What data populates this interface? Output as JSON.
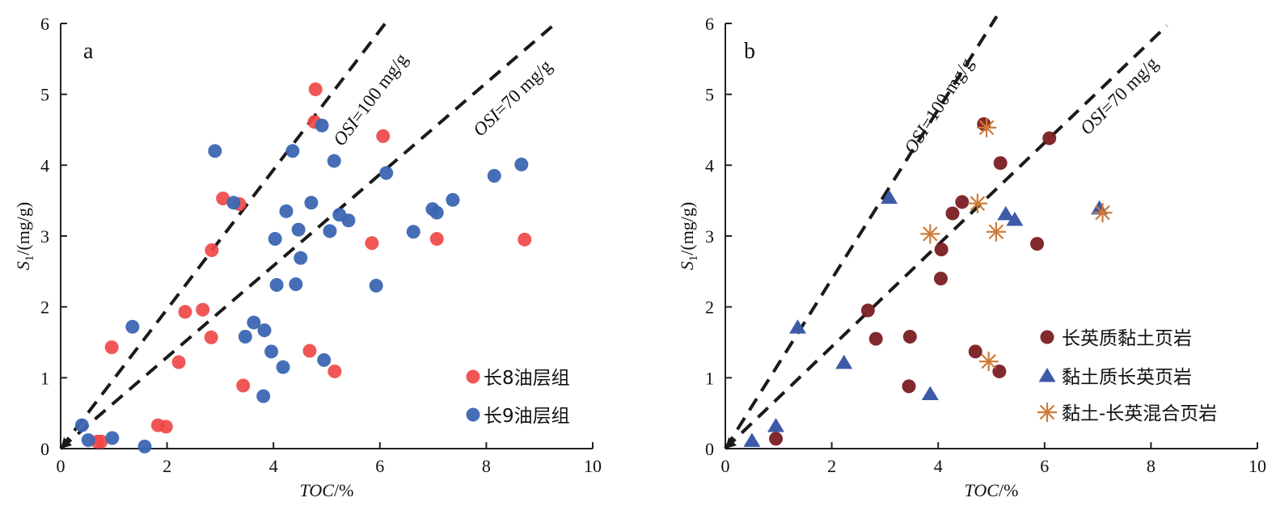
{
  "chart_data": [
    {
      "type": "scatter",
      "panel_label": "a",
      "xlabel_italic": "TOC",
      "xlabel_rest": "/%",
      "ylabel_main": "S",
      "ylabel_sub": "1",
      "ylabel_rest": "/(mg/g)",
      "xlim": [
        0,
        10
      ],
      "ylim": [
        0,
        6
      ],
      "xticks": [
        "0",
        "2",
        "4",
        "6",
        "8",
        "10"
      ],
      "yticks": [
        "0",
        "1",
        "2",
        "3",
        "4",
        "5",
        "6"
      ],
      "legend_position": "bottom-right",
      "reference_lines": [
        {
          "label_italic": "OSI",
          "label_rest": "=100 mg/g",
          "end": [
            6.1,
            6.0
          ]
        },
        {
          "label_italic": "OSI",
          "label_rest": "=70 mg/g",
          "end": [
            9.3,
            6.0
          ]
        }
      ],
      "series": [
        {
          "name": "长8油层组",
          "color": "#f04848",
          "marker": "circle",
          "points": [
            [
              4.79,
              5.07
            ],
            [
              4.77,
              4.61
            ],
            [
              6.06,
              4.41
            ],
            [
              3.05,
              3.53
            ],
            [
              3.36,
              3.45
            ],
            [
              2.84,
              2.8
            ],
            [
              5.85,
              2.9
            ],
            [
              7.07,
              2.96
            ],
            [
              8.72,
              2.95
            ],
            [
              2.34,
              1.93
            ],
            [
              2.67,
              1.96
            ],
            [
              2.83,
              1.57
            ],
            [
              0.96,
              1.43
            ],
            [
              2.22,
              1.22
            ],
            [
              4.68,
              1.38
            ],
            [
              5.15,
              1.09
            ],
            [
              3.43,
              0.89
            ],
            [
              1.83,
              0.33
            ],
            [
              1.98,
              0.31
            ],
            [
              0.69,
              0.1
            ],
            [
              0.76,
              0.1
            ]
          ]
        },
        {
          "name": "长9油层组",
          "color": "#3b66b2",
          "marker": "circle",
          "points": [
            [
              4.91,
              4.56
            ],
            [
              2.9,
              4.2
            ],
            [
              4.36,
              4.2
            ],
            [
              5.14,
              4.06
            ],
            [
              6.12,
              3.89
            ],
            [
              8.15,
              3.85
            ],
            [
              8.66,
              4.01
            ],
            [
              3.25,
              3.47
            ],
            [
              4.71,
              3.47
            ],
            [
              4.24,
              3.35
            ],
            [
              5.24,
              3.3
            ],
            [
              5.41,
              3.22
            ],
            [
              7.37,
              3.51
            ],
            [
              6.99,
              3.38
            ],
            [
              7.07,
              3.33
            ],
            [
              4.47,
              3.09
            ],
            [
              4.03,
              2.96
            ],
            [
              5.06,
              3.07
            ],
            [
              6.63,
              3.06
            ],
            [
              4.51,
              2.69
            ],
            [
              4.06,
              2.31
            ],
            [
              4.42,
              2.32
            ],
            [
              5.93,
              2.3
            ],
            [
              1.35,
              1.72
            ],
            [
              3.63,
              1.78
            ],
            [
              3.83,
              1.67
            ],
            [
              3.47,
              1.58
            ],
            [
              3.96,
              1.37
            ],
            [
              4.18,
              1.15
            ],
            [
              4.95,
              1.25
            ],
            [
              3.81,
              0.74
            ],
            [
              0.4,
              0.33
            ],
            [
              0.52,
              0.12
            ],
            [
              0.97,
              0.15
            ],
            [
              1.58,
              0.03
            ]
          ]
        }
      ]
    },
    {
      "type": "scatter",
      "panel_label": "b",
      "xlabel_italic": "TOC",
      "xlabel_rest": "/%",
      "ylabel_main": "S",
      "ylabel_sub": "1",
      "ylabel_rest": "/(mg/g)",
      "xlim": [
        0,
        10
      ],
      "ylim": [
        0,
        6
      ],
      "xticks": [
        "0",
        "2",
        "4",
        "6",
        "8",
        "10"
      ],
      "yticks": [
        "0",
        "1",
        "2",
        "3",
        "4",
        "5",
        "6"
      ],
      "legend_position": "bottom-right",
      "reference_lines": [
        {
          "label_italic": "OSI",
          "label_rest": "=100 mg/g",
          "end": [
            5.1,
            6.1
          ]
        },
        {
          "label_italic": "OSI",
          "label_rest": "=70 mg/g",
          "end": [
            8.3,
            5.97
          ]
        }
      ],
      "series": [
        {
          "name": "长英质黏土页岩",
          "color": "#7a1e22",
          "marker": "circle",
          "points": [
            [
              4.86,
              4.58
            ],
            [
              6.09,
              4.38
            ],
            [
              5.17,
              4.03
            ],
            [
              4.45,
              3.48
            ],
            [
              4.27,
              3.32
            ],
            [
              4.06,
              2.81
            ],
            [
              5.86,
              2.89
            ],
            [
              4.05,
              2.4
            ],
            [
              2.68,
              1.95
            ],
            [
              2.83,
              1.55
            ],
            [
              3.47,
              1.58
            ],
            [
              3.45,
              0.88
            ],
            [
              4.7,
              1.37
            ],
            [
              5.15,
              1.09
            ],
            [
              0.95,
              0.14
            ]
          ]
        },
        {
          "name": "黏土质长英页岩",
          "color": "#3d5aa8",
          "marker": "triangle",
          "points": [
            [
              3.08,
              3.54
            ],
            [
              5.27,
              3.31
            ],
            [
              5.44,
              3.23
            ],
            [
              7.03,
              3.39
            ],
            [
              1.36,
              1.71
            ],
            [
              2.23,
              1.21
            ],
            [
              3.85,
              0.77
            ],
            [
              0.95,
              0.32
            ],
            [
              0.5,
              0.11
            ]
          ]
        },
        {
          "name": "黏土-长英混合页岩",
          "color": "#d07a35",
          "marker": "asterisk",
          "points": [
            [
              4.91,
              4.53
            ],
            [
              4.74,
              3.46
            ],
            [
              3.85,
              3.03
            ],
            [
              5.09,
              3.06
            ],
            [
              7.09,
              3.33
            ],
            [
              4.95,
              1.23
            ]
          ]
        }
      ]
    }
  ]
}
